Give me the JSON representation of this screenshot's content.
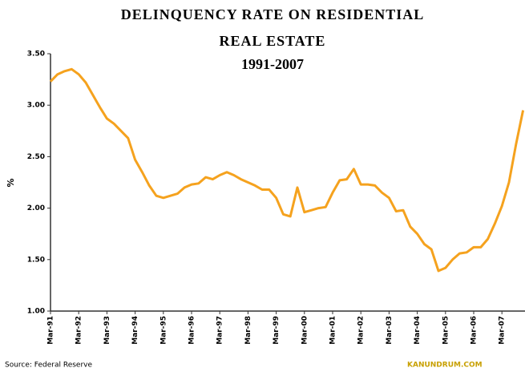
{
  "chart_data": {
    "type": "line",
    "title": "DELINQUENCY RATE ON RESIDENTIAL REAL ESTATE",
    "subtitle": "1991-2007",
    "y_label": "%",
    "source": "Source: Federal Reserve",
    "credit": "KANUNDRUM.COM",
    "color": "#f5a21e",
    "categories": [
      "Mar-91",
      null,
      null,
      null,
      "Mar-92",
      null,
      null,
      null,
      "Mar-93",
      null,
      null,
      null,
      "Mar-94",
      null,
      null,
      null,
      "Mar-95",
      null,
      null,
      null,
      "Mar-96",
      null,
      null,
      null,
      "Mar-97",
      null,
      null,
      null,
      "Mar-98",
      null,
      null,
      null,
      "Mar-99",
      null,
      null,
      null,
      "Mar-00",
      null,
      null,
      null,
      "Mar-01",
      null,
      null,
      null,
      "Mar-02",
      null,
      null,
      null,
      "Mar-03",
      null,
      null,
      null,
      "Mar-04",
      null,
      null,
      null,
      "Mar-05",
      null,
      null,
      null,
      "Mar-06",
      null,
      null,
      null,
      "Mar-07",
      null,
      null,
      null
    ],
    "values": [
      3.23,
      3.3,
      3.33,
      3.35,
      3.3,
      3.22,
      3.1,
      2.98,
      2.87,
      2.82,
      2.75,
      2.68,
      2.47,
      2.35,
      2.22,
      2.12,
      2.1,
      2.12,
      2.14,
      2.2,
      2.23,
      2.24,
      2.3,
      2.28,
      2.32,
      2.35,
      2.32,
      2.28,
      2.25,
      2.22,
      2.18,
      2.18,
      2.1,
      1.94,
      1.92,
      2.2,
      1.96,
      1.98,
      2.0,
      2.01,
      2.15,
      2.27,
      2.28,
      2.38,
      2.23,
      2.23,
      2.22,
      2.15,
      2.1,
      1.97,
      1.98,
      1.82,
      1.75,
      1.65,
      1.6,
      1.39,
      1.42,
      1.5,
      1.56,
      1.57,
      1.62,
      1.62,
      1.7,
      1.85,
      2.02,
      2.25,
      2.62,
      2.95
    ],
    "ylim": [
      1.0,
      3.5
    ],
    "yticks": [
      {
        "value": 1.0,
        "label": "1.00"
      },
      {
        "value": 1.5,
        "label": "1.50"
      },
      {
        "value": 2.0,
        "label": "2.00"
      },
      {
        "value": 2.5,
        "label": "2.50"
      },
      {
        "value": 3.0,
        "label": "3.00"
      },
      {
        "value": 3.5,
        "label": "3.50"
      }
    ]
  }
}
